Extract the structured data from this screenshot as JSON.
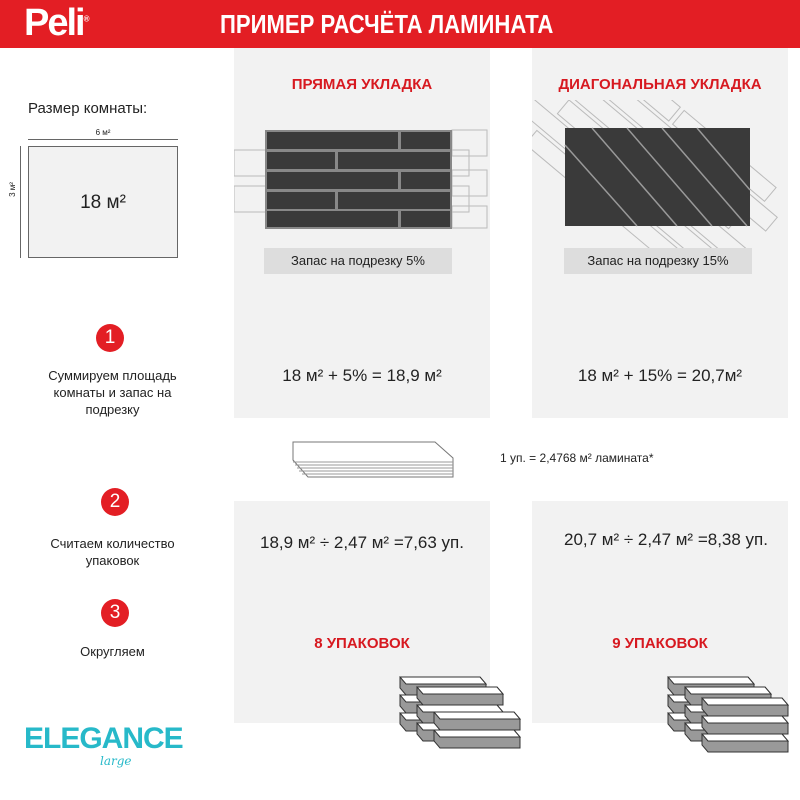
{
  "header": {
    "logo": "Peli",
    "logo_mark": "®",
    "title": "ПРИМЕР РАСЧЁТА ЛАМИНАТА"
  },
  "room": {
    "label": "Размер комнаты:",
    "width": "6 м²",
    "height": "3 м²",
    "area": "18 м²"
  },
  "straight": {
    "title": "ПРЯМАЯ УКЛАДКА",
    "waste": "Запас на подрезку 5%",
    "formula1": "18 м² + 5% = 18,9 м²",
    "formula2": "18,9 м² ÷ 2,47 м² =7,63 уп.",
    "result": "8 УПАКОВОК"
  },
  "diagonal": {
    "title": "ДИАГОНАЛЬНАЯ УКЛАДКА",
    "waste": "Запас на подрезку 15%",
    "formula1": "18 м² + 15% = 20,7м²",
    "formula2": "20,7 м² ÷ 2,47 м² =8,38 уп.",
    "result": "9 УПАКОВОК"
  },
  "steps": [
    {
      "number": "1",
      "text": "Суммируем площадь комнаты и запас на подрезку"
    },
    {
      "number": "2",
      "text": "Считаем количество упаковок"
    },
    {
      "number": "3",
      "text": "Округляем"
    }
  ],
  "package": {
    "text": "1 уп. = 2,4768 м² ламината*"
  },
  "brand": {
    "name": "ELEGANCE",
    "sub": "large"
  },
  "colors": {
    "accent": "#e31e24",
    "panel": "#f2f2f2",
    "board": "#3a3a3a",
    "brand": "#27b9c9"
  }
}
